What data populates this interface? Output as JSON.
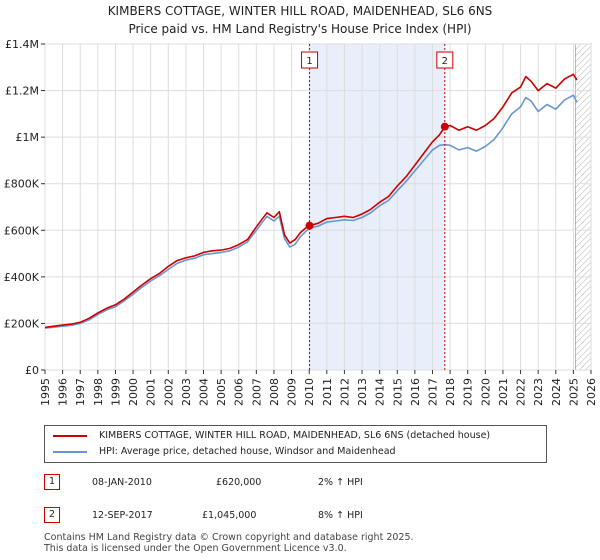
{
  "header": {
    "title": "KIMBERS COTTAGE, WINTER HILL ROAD, MAIDENHEAD, SL6 6NS",
    "subtitle": "Price paid vs. HM Land Registry's House Price Index (HPI)"
  },
  "colors": {
    "property": "#cc0000",
    "hpi": "#6b96cd",
    "shade": "#e8eefa",
    "grid": "#dddddd"
  },
  "legend": {
    "property_label": "KIMBERS COTTAGE, WINTER HILL ROAD, MAIDENHEAD, SL6 6NS (detached house)",
    "hpi_label": "HPI: Average price, detached house, Windsor and Maidenhead"
  },
  "transactions": [
    {
      "marker": "1",
      "date": "08-JAN-2010",
      "price": "£620,000",
      "hpi_change": "2% ↑ HPI"
    },
    {
      "marker": "2",
      "date": "12-SEP-2017",
      "price": "£1,045,000",
      "hpi_change": "8% ↑ HPI"
    }
  ],
  "footer": {
    "line1": "Contains HM Land Registry data © Crown copyright and database right 2025.",
    "line2": "This data is licensed under the Open Government Licence v3.0."
  },
  "chart_data": {
    "type": "line",
    "title": "KIMBERS COTTAGE, WINTER HILL ROAD, MAIDENHEAD, SL6 6NS",
    "subtitle": "Price paid vs. HM Land Registry's House Price Index (HPI)",
    "xlim": [
      1995,
      2026
    ],
    "ylim": [
      0,
      1400000
    ],
    "x_ticks": [
      "1995",
      "1996",
      "1997",
      "1998",
      "1999",
      "2000",
      "2001",
      "2002",
      "2003",
      "2004",
      "2005",
      "2006",
      "2007",
      "2008",
      "2009",
      "2010",
      "2011",
      "2012",
      "2013",
      "2014",
      "2015",
      "2016",
      "2017",
      "2018",
      "2019",
      "2020",
      "2021",
      "2022",
      "2023",
      "2024",
      "2025",
      "2026"
    ],
    "y_ticks": [
      {
        "value": 0,
        "label": "£0"
      },
      {
        "value": 200000,
        "label": "£200K"
      },
      {
        "value": 400000,
        "label": "£400K"
      },
      {
        "value": 600000,
        "label": "£600K"
      },
      {
        "value": 800000,
        "label": "£800K"
      },
      {
        "value": 1000000,
        "label": "£1M"
      },
      {
        "value": 1200000,
        "label": "£1.2M"
      },
      {
        "value": 1400000,
        "label": "£1.4M"
      }
    ],
    "grid": true,
    "shaded_period": [
      2010.02,
      2017.7
    ],
    "future_hatch_from": 2025.1,
    "markers": [
      {
        "label": "1",
        "x": 2010.02,
        "y": 620000
      },
      {
        "label": "2",
        "x": 2017.7,
        "y": 1045000
      }
    ],
    "series": [
      {
        "name": "KIMBERS COTTAGE, WINTER HILL ROAD, MAIDENHEAD, SL6 6NS (detached house)",
        "x": [
          1995,
          1995.5,
          1996,
          1996.5,
          1997,
          1997.5,
          1998,
          1998.5,
          1999,
          1999.5,
          2000,
          2000.5,
          2001,
          2001.5,
          2002,
          2002.5,
          2003,
          2003.5,
          2004,
          2004.5,
          2005,
          2005.5,
          2006,
          2006.5,
          2007,
          2007.3,
          2007.6,
          2008,
          2008.3,
          2008.6,
          2008.9,
          2009.2,
          2009.5,
          2009.8,
          2010.02,
          2010.5,
          2011,
          2011.5,
          2012,
          2012.5,
          2013,
          2013.5,
          2014,
          2014.5,
          2015,
          2015.5,
          2016,
          2016.5,
          2017,
          2017.4,
          2017.7,
          2018,
          2018.5,
          2019,
          2019.5,
          2020,
          2020.5,
          2021,
          2021.5,
          2022,
          2022.3,
          2022.6,
          2023,
          2023.5,
          2024,
          2024.5,
          2025,
          2025.2
        ],
        "y": [
          183000,
          188000,
          193000,
          197000,
          205000,
          222000,
          245000,
          265000,
          280000,
          305000,
          335000,
          365000,
          392000,
          415000,
          445000,
          470000,
          482000,
          490000,
          505000,
          512000,
          515000,
          522000,
          538000,
          560000,
          615000,
          645000,
          675000,
          655000,
          680000,
          580000,
          545000,
          560000,
          590000,
          610000,
          620000,
          630000,
          650000,
          655000,
          660000,
          655000,
          670000,
          690000,
          720000,
          745000,
          790000,
          830000,
          880000,
          930000,
          980000,
          1010000,
          1045000,
          1050000,
          1030000,
          1045000,
          1030000,
          1050000,
          1080000,
          1130000,
          1190000,
          1215000,
          1260000,
          1240000,
          1200000,
          1230000,
          1210000,
          1250000,
          1270000,
          1245000
        ]
      },
      {
        "name": "HPI: Average price, detached house, Windsor and Maidenhead",
        "x": [
          1995,
          1995.5,
          1996,
          1996.5,
          1997,
          1997.5,
          1998,
          1998.5,
          1999,
          1999.5,
          2000,
          2000.5,
          2001,
          2001.5,
          2002,
          2002.5,
          2003,
          2003.5,
          2004,
          2004.5,
          2005,
          2005.5,
          2006,
          2006.5,
          2007,
          2007.3,
          2007.6,
          2008,
          2008.3,
          2008.6,
          2008.9,
          2009.2,
          2009.5,
          2009.8,
          2010.02,
          2010.5,
          2011,
          2011.5,
          2012,
          2012.5,
          2013,
          2013.5,
          2014,
          2014.5,
          2015,
          2015.5,
          2016,
          2016.5,
          2017,
          2017.4,
          2017.7,
          2018,
          2018.5,
          2019,
          2019.5,
          2020,
          2020.5,
          2021,
          2021.5,
          2022,
          2022.3,
          2022.6,
          2023,
          2023.5,
          2024,
          2024.5,
          2025,
          2025.2
        ],
        "y": [
          180000,
          184000,
          188000,
          192000,
          200000,
          215000,
          238000,
          258000,
          272000,
          297000,
          325000,
          355000,
          382000,
          405000,
          432000,
          458000,
          472000,
          480000,
          495000,
          500000,
          505000,
          512000,
          528000,
          550000,
          600000,
          630000,
          660000,
          640000,
          660000,
          565000,
          528000,
          540000,
          572000,
          595000,
          608000,
          618000,
          635000,
          640000,
          645000,
          642000,
          655000,
          675000,
          705000,
          728000,
          770000,
          810000,
          855000,
          900000,
          945000,
          965000,
          968000,
          965000,
          945000,
          955000,
          940000,
          960000,
          990000,
          1040000,
          1100000,
          1130000,
          1170000,
          1155000,
          1110000,
          1140000,
          1120000,
          1160000,
          1180000,
          1150000
        ]
      }
    ]
  }
}
